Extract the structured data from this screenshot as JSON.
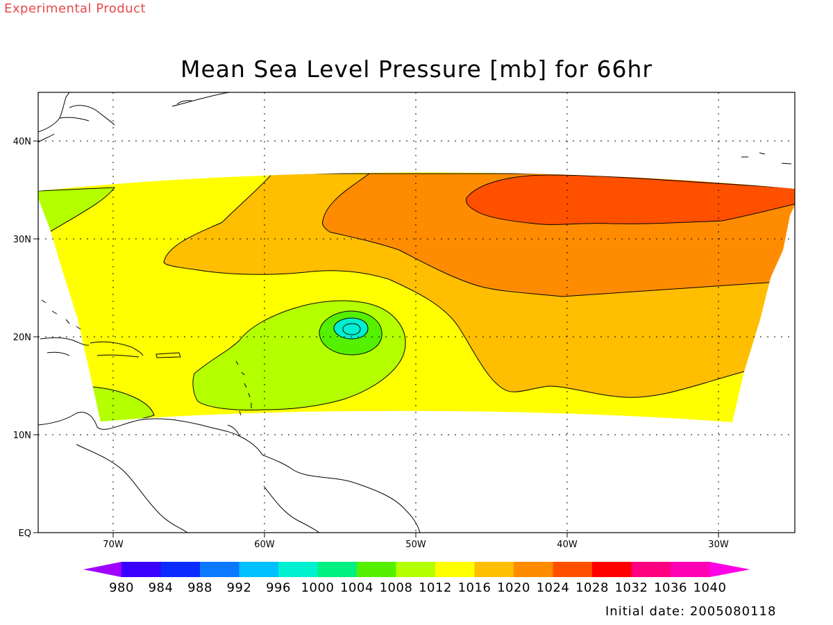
{
  "header": {
    "watermark": "Experimental Product",
    "title": "Mean Sea Level Pressure [mb] for 66hr"
  },
  "footer": {
    "initial_date": "Initial date: 2005080118"
  },
  "map": {
    "lon_ticks": [
      "70W",
      "60W",
      "50W",
      "40W",
      "30W"
    ],
    "lat_ticks": [
      "40N",
      "30N",
      "20N",
      "10N",
      "EQ"
    ],
    "lon_range": [
      -75,
      -25
    ],
    "lat_range": [
      0,
      45
    ],
    "grid": "dotted",
    "low_center": {
      "lon": -54.2,
      "lat": 20.8,
      "level_min": 1000
    }
  },
  "colorbar": {
    "labels": [
      "980",
      "984",
      "988",
      "992",
      "996",
      "1000",
      "1004",
      "1008",
      "1012",
      "1016",
      "1020",
      "1024",
      "1028",
      "1032",
      "1036",
      "1040"
    ],
    "colors": [
      "#a000ff",
      "#3a00ff",
      "#0a2cff",
      "#0a78ff",
      "#00c0ff",
      "#00f0d0",
      "#00f080",
      "#55f000",
      "#b4ff00",
      "#ffff00",
      "#ffbe00",
      "#ff8c00",
      "#ff5000",
      "#ff0000",
      "#ff0080",
      "#ff00b4",
      "#ff00e6"
    ]
  }
}
